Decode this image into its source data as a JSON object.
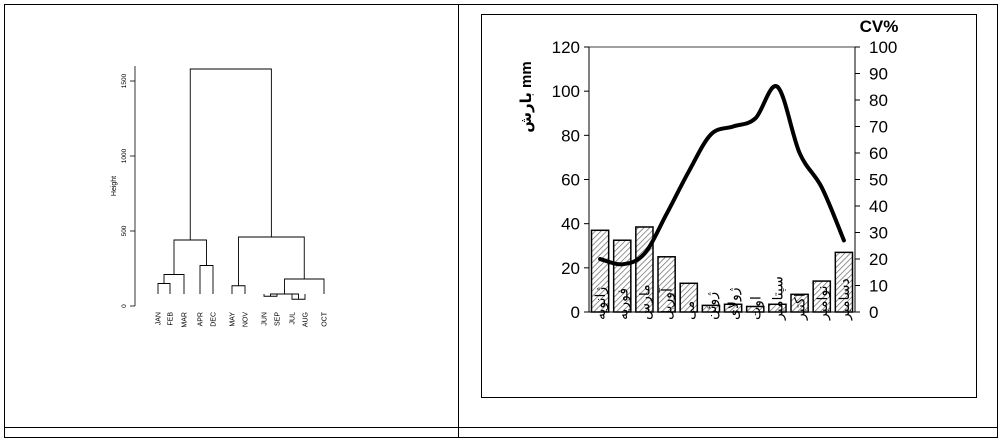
{
  "chart_data": [
    {
      "type": "dendrogram",
      "ylabel": "Height",
      "yticks": [
        0,
        500,
        1000,
        1500
      ],
      "ylim": [
        0,
        1600
      ],
      "leaves": [
        "JAN",
        "FEB",
        "MAR",
        "APR",
        "DEC",
        "MAY",
        "NOV",
        "JUN",
        "SEP",
        "JUL",
        "AUG",
        "OCT"
      ],
      "merges": [
        {
          "left": "JAN",
          "right": "FEB",
          "height": 150
        },
        {
          "left": "JAN-FEB",
          "right": "MAR",
          "height": 210
        },
        {
          "left": "APR",
          "right": "DEC",
          "height": 270
        },
        {
          "left": "JAN-FEB-MAR",
          "right": "APR-DEC",
          "height": 440
        },
        {
          "left": "MAY",
          "right": "NOV",
          "height": 135
        },
        {
          "left": "JUL",
          "right": "AUG",
          "height": 45
        },
        {
          "left": "JUN",
          "right": "SEP",
          "height": 65
        },
        {
          "left": "JUN-SEP",
          "right": "JUL-AUG",
          "height": 80
        },
        {
          "left": "JUN-SEP-JUL-AUG",
          "right": "OCT",
          "height": 180
        },
        {
          "left": "MAY-NOV",
          "right": "JUN-SEP-JUL-AUG-OCT",
          "height": 460
        },
        {
          "left": "JAN-FEB-MAR-APR-DEC",
          "right": "MAY-NOV-JUN-SEP-JUL-AUG-OCT",
          "height": 1580
        }
      ]
    },
    {
      "type": "bar+line",
      "categories": [
        "ژانویه",
        "فوریه",
        "مارس",
        "آوریل",
        "می",
        "ژوئن",
        "ژولای",
        "اوت",
        "سپتامبر",
        "اکتبر",
        "نوامبر",
        "دسامبر"
      ],
      "left_axis": {
        "label": "بارش mm",
        "ylim": [
          0,
          120
        ],
        "ticks": [
          0,
          20,
          40,
          60,
          80,
          100,
          120
        ]
      },
      "right_axis": {
        "label": "CV%",
        "ylim": [
          0,
          100
        ],
        "ticks": [
          0,
          10,
          20,
          30,
          40,
          50,
          60,
          70,
          80,
          90,
          100
        ]
      },
      "series": [
        {
          "axis": "left",
          "type": "bar",
          "values": [
            37,
            32.5,
            38.5,
            25,
            13,
            3,
            3.5,
            2.5,
            3.5,
            8,
            14,
            27
          ]
        },
        {
          "axis": "right",
          "type": "line",
          "values": [
            20,
            18,
            22,
            37,
            53,
            67,
            70,
            73,
            85,
            60,
            47,
            27
          ]
        }
      ]
    }
  ]
}
